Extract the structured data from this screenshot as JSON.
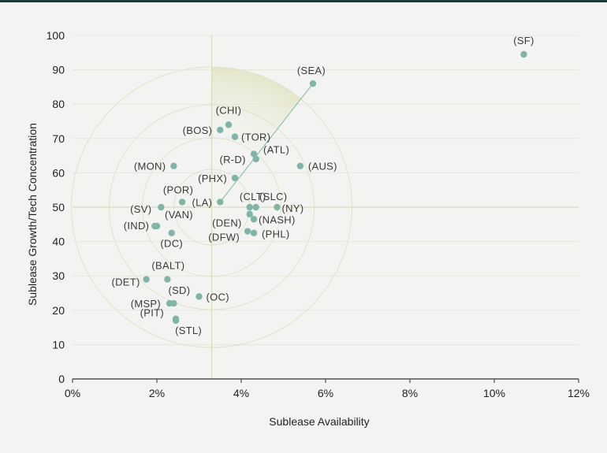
{
  "chart_data": {
    "type": "scatter",
    "xlabel": "Sublease Availability",
    "ylabel": "Sublease Growth/Tech Concentration",
    "xlim": [
      0,
      12
    ],
    "ylim": [
      0,
      100
    ],
    "x_ticks": [
      "0%",
      "2%",
      "4%",
      "6%",
      "8%",
      "10%",
      "12%"
    ],
    "y_ticks": [
      "0",
      "10",
      "20",
      "30",
      "40",
      "50",
      "60",
      "70",
      "80",
      "90",
      "100"
    ],
    "reference": {
      "x": 3.3,
      "y": 50
    },
    "grid": "horizontal",
    "colors": {
      "point": "#7fb5a6",
      "line": "#8fbfa9",
      "grid": "#e4e7dd",
      "ring": "#dfe3c8",
      "axis": "#333333"
    },
    "points": [
      {
        "label": "(SF)",
        "x": 10.7,
        "y": 94.5
      },
      {
        "label": "(SEA)",
        "x": 5.7,
        "y": 86
      },
      {
        "label": "(CHI)",
        "x": 3.7,
        "y": 74
      },
      {
        "label": "(BOS)",
        "x": 3.5,
        "y": 72.5
      },
      {
        "label": "(TOR)",
        "x": 3.85,
        "y": 70.5
      },
      {
        "label": "(ATL)",
        "x": 4.3,
        "y": 65.5
      },
      {
        "label": "(R-D)",
        "x": 4.35,
        "y": 64
      },
      {
        "label": "(AUS)",
        "x": 5.4,
        "y": 62
      },
      {
        "label": "(MON)",
        "x": 2.4,
        "y": 62
      },
      {
        "label": "(PHX)",
        "x": 3.85,
        "y": 58.5
      },
      {
        "label": "(CLT)",
        "x": 4.2,
        "y": 50
      },
      {
        "label": "(SLC)",
        "x": 4.35,
        "y": 50
      },
      {
        "label": "(NY)",
        "x": 4.85,
        "y": 50
      },
      {
        "label": "(LA)",
        "x": 3.5,
        "y": 51.5
      },
      {
        "label": "(POR)",
        "x": 2.6,
        "y": 51.5
      },
      {
        "label": "(SV)",
        "x": 2.1,
        "y": 50
      },
      {
        "label": "(DEN)",
        "x": 4.2,
        "y": 48
      },
      {
        "label": "(NASH)",
        "x": 4.3,
        "y": 46.5
      },
      {
        "label": "(VAN)",
        "x": 2.0,
        "y": 44.5
      },
      {
        "label": "(IND)",
        "x": 1.95,
        "y": 44.5
      },
      {
        "label": "(DC)",
        "x": 2.35,
        "y": 42.5
      },
      {
        "label": "(DFW)",
        "x": 4.15,
        "y": 43
      },
      {
        "label": "(PHL)",
        "x": 4.3,
        "y": 42.5
      },
      {
        "label": "(BALT)",
        "x": 2.25,
        "y": 29
      },
      {
        "label": "(DET)",
        "x": 1.75,
        "y": 29
      },
      {
        "label": "(SD)",
        "x": 2.4,
        "y": 22
      },
      {
        "label": "(OC)",
        "x": 3.0,
        "y": 24
      },
      {
        "label": "(MSP)",
        "x": 2.3,
        "y": 22
      },
      {
        "label": "(PIT)",
        "x": 2.45,
        "y": 17.5
      },
      {
        "label": "(STL)",
        "x": 2.45,
        "y": 17
      }
    ]
  }
}
